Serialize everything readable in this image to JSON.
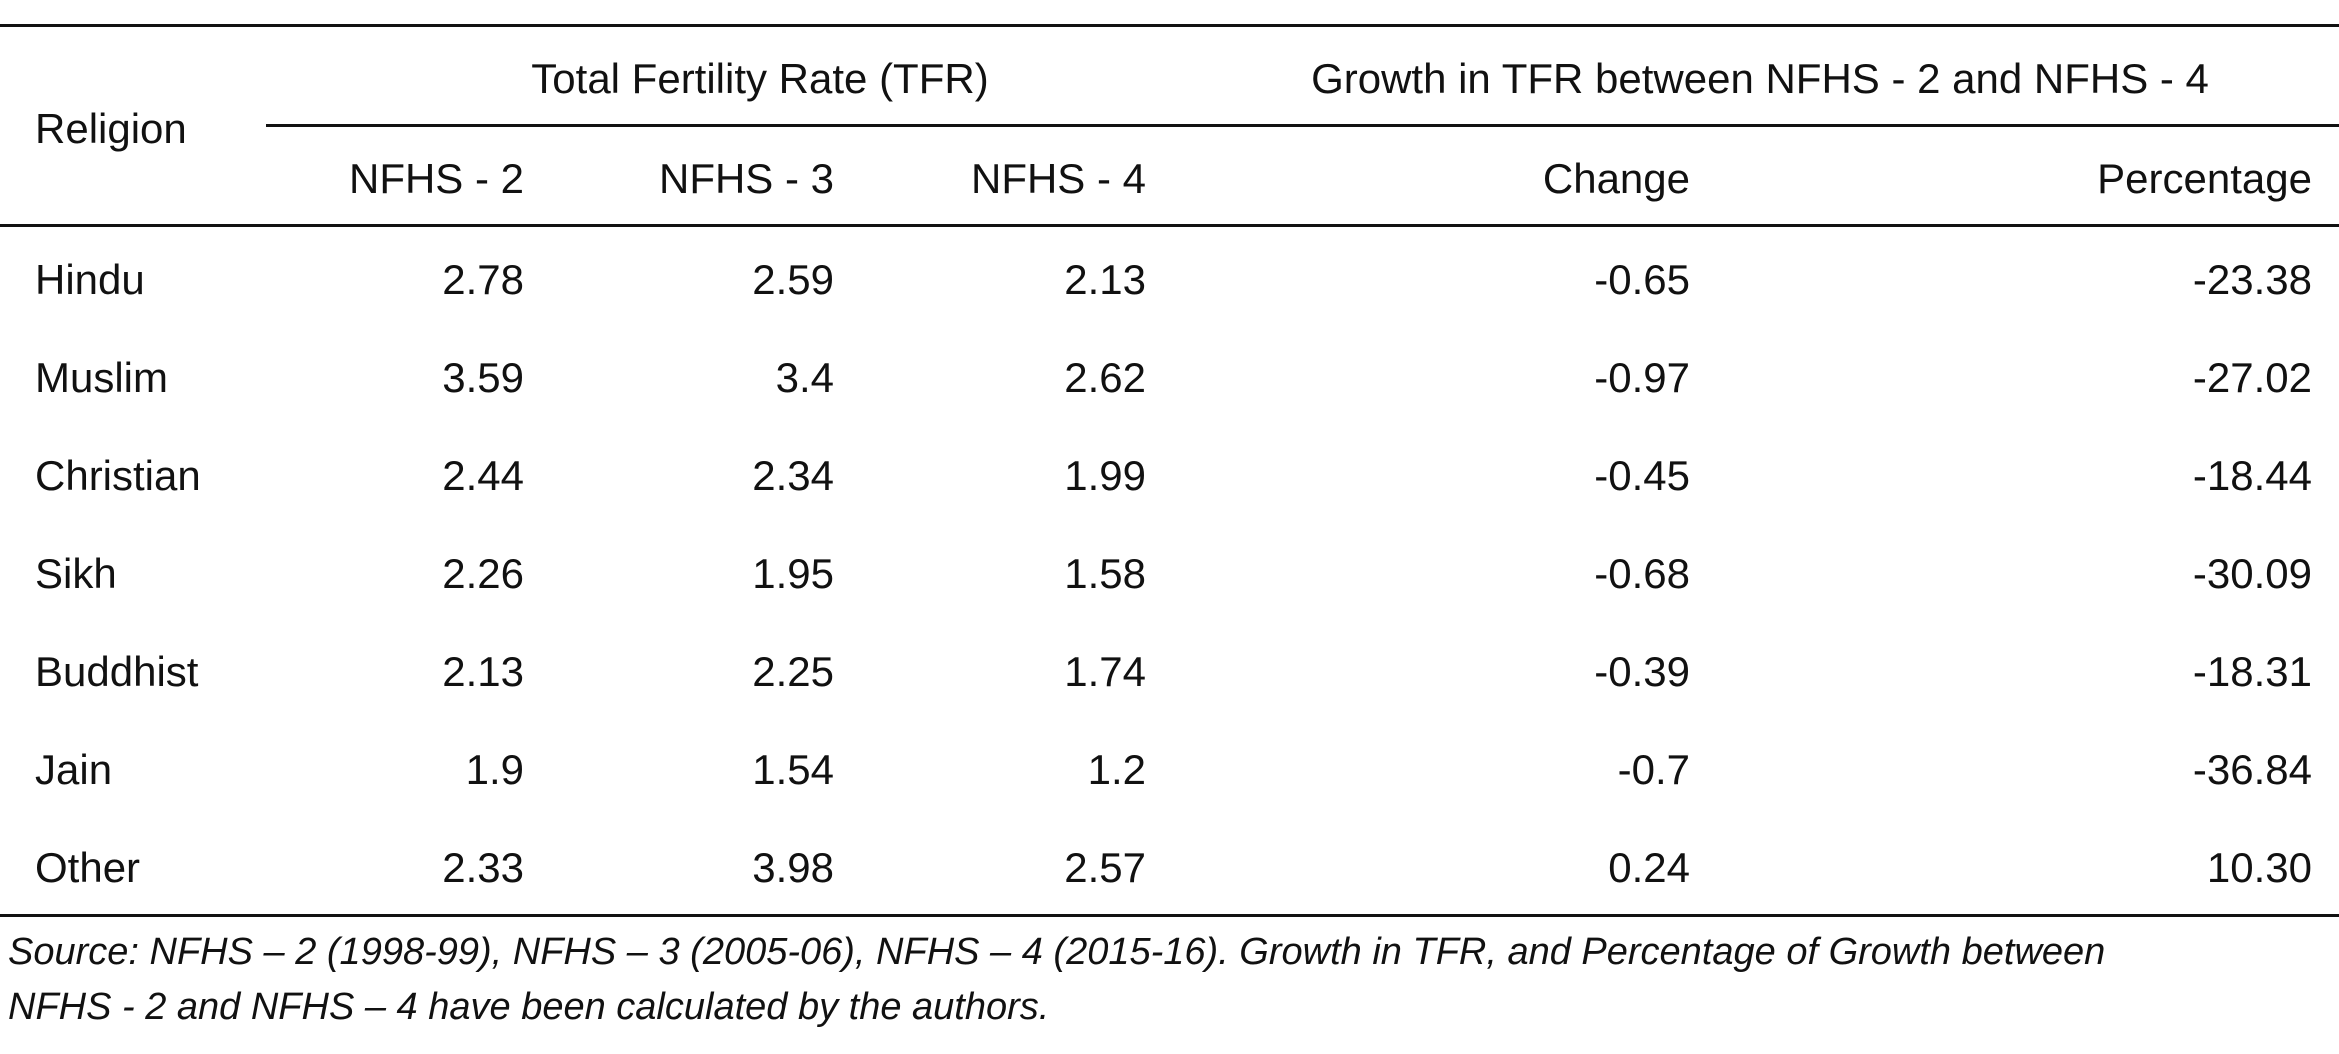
{
  "table": {
    "header": {
      "religion": "Religion",
      "tfr_group": "Total Fertility Rate (TFR)",
      "growth_group": "Growth in TFR between NFHS - 2 and NFHS - 4",
      "columns": [
        "NFHS - 2",
        "NFHS - 3",
        "NFHS - 4",
        "Change",
        "Percentage"
      ]
    },
    "rows": [
      {
        "religion": "Hindu",
        "nfhs2": "2.78",
        "nfhs3": "2.59",
        "nfhs4": "2.13",
        "change": "-0.65",
        "percentage": "-23.38"
      },
      {
        "religion": "Muslim",
        "nfhs2": "3.59",
        "nfhs3": "3.4",
        "nfhs4": "2.62",
        "change": "-0.97",
        "percentage": "-27.02"
      },
      {
        "religion": "Christian",
        "nfhs2": "2.44",
        "nfhs3": "2.34",
        "nfhs4": "1.99",
        "change": "-0.45",
        "percentage": "-18.44"
      },
      {
        "religion": "Sikh",
        "nfhs2": "2.26",
        "nfhs3": "1.95",
        "nfhs4": "1.58",
        "change": "-0.68",
        "percentage": "-30.09"
      },
      {
        "religion": "Buddhist",
        "nfhs2": "2.13",
        "nfhs3": "2.25",
        "nfhs4": "1.74",
        "change": "-0.39",
        "percentage": "-18.31"
      },
      {
        "religion": "Jain",
        "nfhs2": "1.9",
        "nfhs3": "1.54",
        "nfhs4": "1.2",
        "change": "-0.7",
        "percentage": "-36.84"
      },
      {
        "religion": "Other",
        "nfhs2": "2.33",
        "nfhs3": "3.98",
        "nfhs4": "2.57",
        "change": "0.24",
        "percentage": "10.30"
      }
    ]
  },
  "source_note": {
    "line1": "Source: NFHS – 2 (1998-99), NFHS – 3 (2005-06), NFHS – 4 (2015-16). Growth in TFR, and Percentage of Growth between",
    "line2": "NFHS - 2 and NFHS – 4 have been calculated by the authors."
  }
}
